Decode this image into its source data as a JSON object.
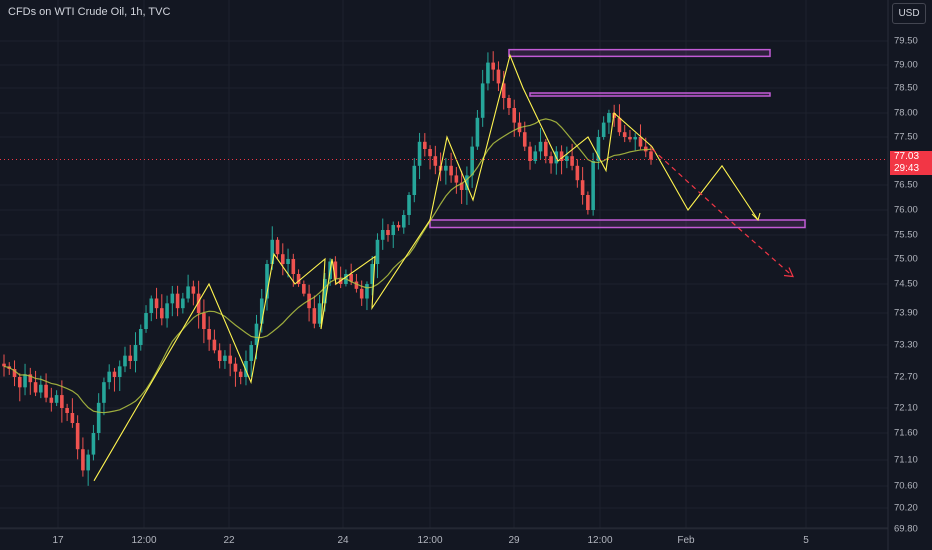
{
  "header": {
    "title": "CFDs on WTI Crude Oil, 1h, TVC",
    "currency": "USD"
  },
  "price_axis": [
    "79.50",
    "79.00",
    "78.50",
    "78.00",
    "77.50",
    "76.50",
    "76.00",
    "75.50",
    "75.00",
    "74.50",
    "73.90",
    "73.30",
    "72.70",
    "72.10",
    "71.60",
    "71.10",
    "70.60",
    "70.20",
    "69.80"
  ],
  "time_axis": [
    "17",
    "12:00",
    "22",
    "24",
    "12:00",
    "29",
    "12:00",
    "Feb",
    "5"
  ],
  "current_price": {
    "price": "77.03",
    "countdown": "29:43"
  },
  "chart_data": {
    "type": "line",
    "title": "CFDs on WTI Crude Oil, 1h, TVC",
    "ylim": [
      69.8,
      79.8
    ],
    "x_ticks": [
      "17",
      "12:00",
      "22",
      "24",
      "12:00",
      "29",
      "12:00",
      "Feb",
      "5"
    ],
    "series": [
      {
        "kind": "candlestick",
        "closes": [
          72.9,
          72.85,
          72.7,
          72.5,
          72.75,
          72.6,
          72.4,
          72.55,
          72.3,
          72.2,
          72.35,
          72.1,
          72.0,
          71.8,
          71.3,
          70.9,
          71.2,
          71.6,
          72.2,
          72.6,
          72.8,
          72.7,
          72.9,
          73.1,
          73.0,
          73.3,
          73.6,
          73.9,
          74.2,
          74.0,
          73.8,
          74.1,
          74.3,
          74.0,
          74.2,
          74.45,
          74.3,
          73.9,
          73.6,
          73.4,
          73.2,
          73.0,
          73.1,
          72.95,
          72.8,
          72.7,
          73.0,
          73.3,
          73.7,
          74.2,
          74.9,
          75.4,
          75.1,
          74.9,
          75.0,
          74.7,
          74.5,
          74.3,
          74.0,
          73.7,
          74.1,
          74.6,
          74.95,
          74.6,
          74.5,
          74.7,
          74.55,
          74.4,
          74.2,
          74.5,
          74.9,
          75.4,
          75.6,
          75.5,
          75.7,
          75.65,
          75.9,
          76.3,
          76.9,
          77.4,
          77.25,
          77.1,
          76.9,
          76.8,
          76.9,
          76.7,
          76.55,
          76.4,
          76.7,
          77.3,
          77.9,
          78.6,
          79.05,
          78.9,
          78.6,
          78.3,
          78.1,
          77.8,
          77.6,
          77.3,
          77.0,
          77.2,
          77.4,
          77.1,
          76.95,
          77.2,
          77.0,
          77.1,
          76.9,
          76.6,
          76.3,
          76.0,
          77.0,
          77.5,
          77.8,
          78.0,
          77.9,
          77.6,
          77.5,
          77.45,
          77.5,
          77.3,
          77.2,
          77.03
        ]
      },
      {
        "kind": "moving-average",
        "name": ""
      },
      {
        "kind": "zigzag",
        "values": [
          70.7,
          74.5,
          72.6,
          75.1,
          74.5,
          75.0,
          73.6,
          75.0,
          74.5,
          75.05,
          74.0,
          75.8,
          77.5,
          76.2,
          79.2,
          78.5,
          77.0,
          77.5,
          76.8,
          78.0,
          77.3
        ]
      },
      {
        "kind": "projection",
        "values": [
          77.3,
          76.0,
          76.9,
          75.8
        ]
      },
      {
        "kind": "projection-dashed",
        "values": [
          77.25,
          75.7,
          74.65
        ]
      }
    ],
    "zones": [
      {
        "top": 79.32,
        "bottom": 79.18
      },
      {
        "top": 78.4,
        "bottom": 78.36
      },
      {
        "top": 75.8,
        "bottom": 75.65
      }
    ],
    "colors": {
      "up": "#26a69a",
      "down": "#ef5350",
      "zigzag": "#fff44f",
      "zone": "#c25bd6",
      "ma": "#b5c542",
      "projection": "#f23645",
      "background": "#131722"
    },
    "grid": true
  }
}
